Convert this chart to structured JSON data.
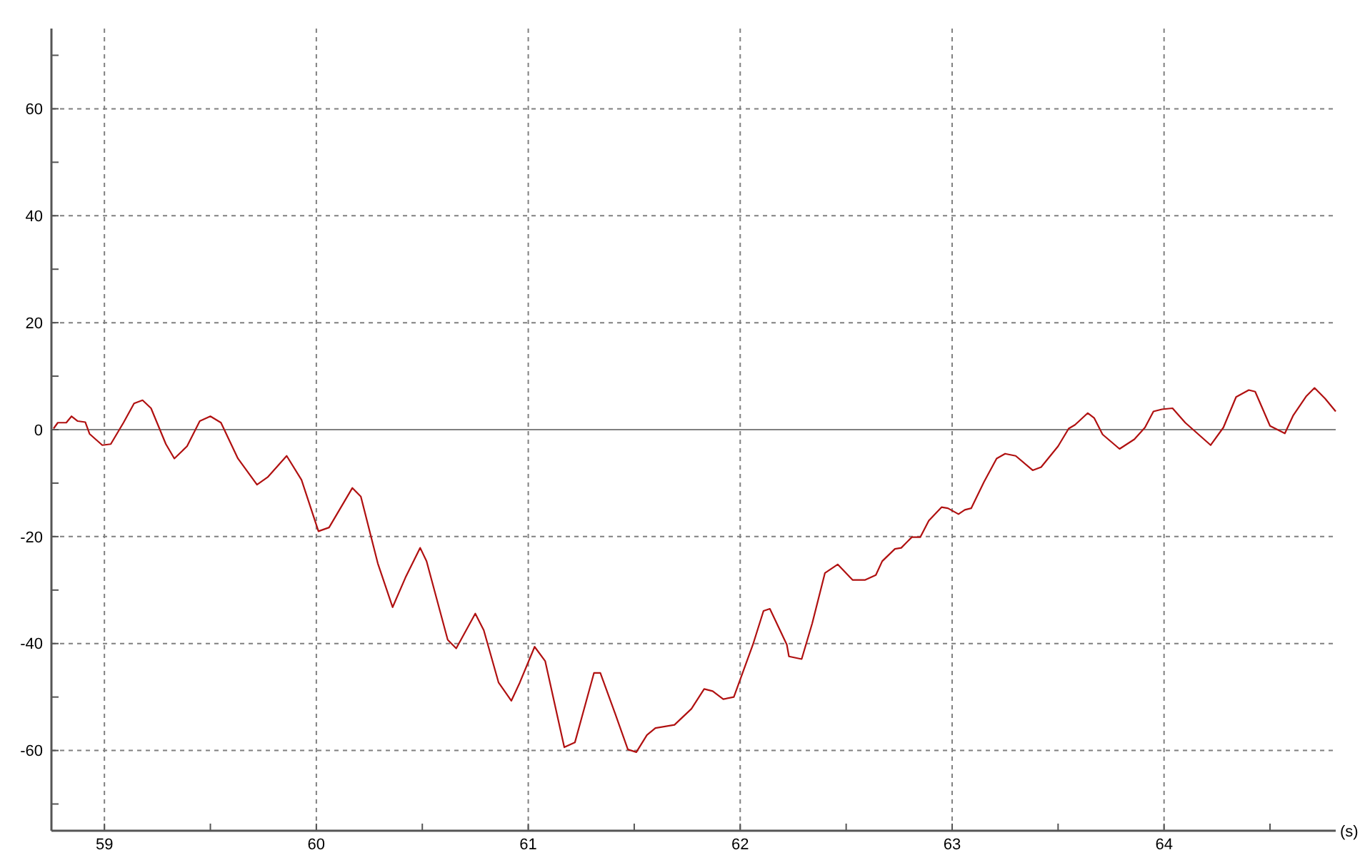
{
  "chart_data": {
    "type": "line",
    "xlabel": "(s)",
    "xlim": [
      58.75,
      64.81
    ],
    "ylim": [
      -75,
      75
    ],
    "xticks": [
      59,
      {
        "value": 59.5,
        "label": null
      },
      60,
      {
        "value": 60.5,
        "label": null
      },
      61,
      {
        "value": 61.5,
        "label": null
      },
      62,
      {
        "value": 62.5,
        "label": null
      },
      63,
      {
        "value": 63.5,
        "label": null
      },
      64,
      {
        "value": 64.5,
        "label": null
      }
    ],
    "yticks": [
      {
        "value": -70,
        "label": null
      },
      -60,
      {
        "value": -50,
        "label": null
      },
      -40,
      {
        "value": -30,
        "label": null
      },
      -20,
      {
        "value": -10,
        "label": null
      },
      0,
      {
        "value": 10,
        "label": null
      },
      20,
      {
        "value": 30,
        "label": null
      },
      40,
      {
        "value": 50,
        "label": null
      },
      60,
      {
        "value": 70,
        "label": null
      }
    ],
    "grid": true,
    "line_style": "solid",
    "marker": "none",
    "ref_lines": [
      {
        "axis": "y",
        "value": 0,
        "color": "#808080",
        "line_style": "solid"
      }
    ],
    "series": [
      {
        "color": "#b01010",
        "x": [
          58.76,
          58.78,
          58.82,
          58.845,
          58.874,
          58.91,
          58.93,
          58.99,
          59.03,
          59.09,
          59.14,
          59.18,
          59.22,
          59.29,
          59.33,
          59.39,
          59.45,
          59.5,
          59.55,
          59.63,
          59.72,
          59.77,
          59.86,
          59.93,
          60.01,
          60.06,
          60.17,
          60.21,
          60.29,
          60.36,
          60.42,
          60.49,
          60.52,
          60.62,
          60.66,
          60.75,
          60.79,
          60.86,
          60.92,
          60.96,
          61.03,
          61.08,
          61.17,
          61.22,
          61.31,
          61.34,
          61.41,
          61.47,
          61.51,
          61.56,
          61.6,
          61.69,
          61.77,
          61.83,
          61.87,
          61.92,
          61.97,
          62.06,
          62.11,
          62.14,
          62.22,
          62.23,
          62.29,
          62.34,
          62.4,
          62.46,
          62.53,
          62.59,
          62.64,
          62.67,
          62.73,
          62.76,
          62.81,
          62.85,
          62.89,
          62.95,
          62.98,
          63.03,
          63.06,
          63.09,
          63.15,
          63.21,
          63.25,
          63.3,
          63.38,
          63.42,
          63.5,
          63.55,
          63.58,
          63.64,
          63.67,
          63.71,
          63.79,
          63.86,
          63.91,
          63.95,
          63.99,
          64.04,
          64.1,
          64.22,
          64.28,
          64.34,
          64.4,
          64.43,
          64.5,
          64.57,
          64.61,
          64.67,
          64.71,
          64.76,
          64.81
        ],
        "values": [
          0.2,
          1.3,
          1.3,
          2.5,
          1.6,
          1.4,
          -0.8,
          -2.9,
          -2.7,
          1.3,
          4.9,
          5.5,
          4,
          -2.7,
          -5.4,
          -3.1,
          1.6,
          2.5,
          1.3,
          -5.4,
          -10.3,
          -8.9,
          -4.9,
          -9.4,
          -19,
          -18.3,
          -10.9,
          -12.5,
          -25,
          -33.2,
          -27.7,
          -22.1,
          -24.6,
          -39.3,
          -40.9,
          -34.4,
          -37.5,
          -47.3,
          -50.7,
          -47.3,
          -40.6,
          -43.3,
          -59.4,
          -58.5,
          -45.5,
          -45.5,
          -53.1,
          -59.8,
          -60.3,
          -57.1,
          -55.8,
          -55.2,
          -52.2,
          -48.5,
          -48.9,
          -50.4,
          -50,
          -40.2,
          -33.9,
          -33.5,
          -40.2,
          -42.4,
          -42.9,
          -36.2,
          -26.8,
          -25.2,
          -28.1,
          -28.1,
          -27.2,
          -24.6,
          -22.3,
          -22.1,
          -20.1,
          -20.1,
          -17,
          -14.5,
          -14.7,
          -15.8,
          -15,
          -14.7,
          -9.8,
          -5.4,
          -4.5,
          -4.9,
          -7.6,
          -7,
          -3.1,
          0.2,
          0.9,
          3.1,
          2.2,
          -0.9,
          -3.6,
          -1.8,
          0.4,
          3.4,
          3.8,
          4,
          1.3,
          -2.9,
          0.4,
          6.1,
          7.4,
          7.1,
          0.7,
          -0.7,
          2.7,
          6.2,
          7.8,
          5.8,
          3.4
        ]
      }
    ]
  }
}
